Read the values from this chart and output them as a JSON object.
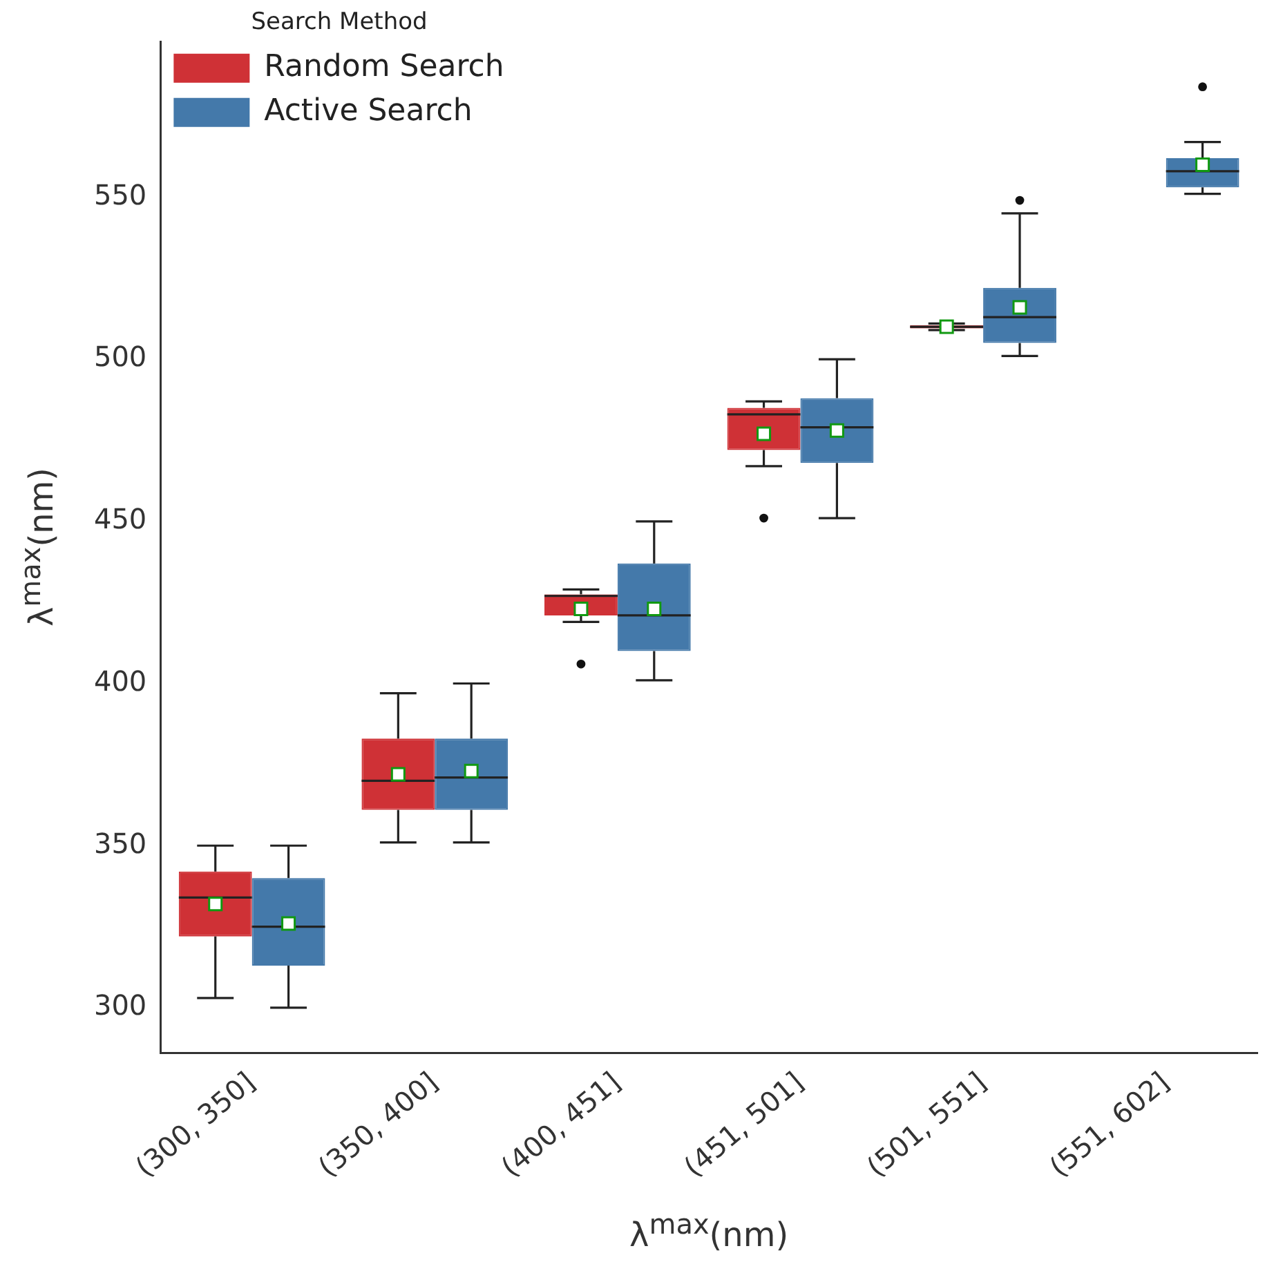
{
  "chart_data": {
    "type": "box",
    "xlabel": "λ$^{max}$(nm)",
    "ylabel": "λ$^{max}$(nm)",
    "legend_title": "Search Method",
    "legend": "top left",
    "grid": false,
    "categories": [
      "(300, 350]",
      "(350, 400]",
      "(400, 451]",
      "(451, 501]",
      "(501, 551]",
      "(551, 602]"
    ],
    "ylim": [
      286,
      598
    ],
    "yticks": [
      300,
      350,
      400,
      450,
      500,
      550
    ],
    "series": [
      {
        "name": "Random Search",
        "color": "#cf3136",
        "boxes": [
          {
            "low": 303,
            "q1": 322,
            "median": 334,
            "q3": 342,
            "high": 350,
            "mean": 332
          },
          {
            "low": 351,
            "q1": 361,
            "median": 370,
            "q3": 383,
            "high": 397,
            "mean": 372
          },
          {
            "low": 419,
            "q1": 421,
            "median": 427,
            "q3": 427.5,
            "high": 429,
            "mean": 423,
            "outliers": [
              406
            ]
          },
          {
            "low": 467,
            "q1": 472,
            "median": 483,
            "q3": 485,
            "high": 487,
            "mean": 477,
            "outliers": [
              451
            ]
          },
          {
            "low": 509,
            "q1": 509.5,
            "median": 510,
            "q3": 510.5,
            "high": 511,
            "mean": 510
          },
          null
        ]
      },
      {
        "name": "Active Search",
        "color": "#4479aa",
        "boxes": [
          {
            "low": 300,
            "q1": 313,
            "median": 325,
            "q3": 340,
            "high": 350,
            "mean": 326
          },
          {
            "low": 351,
            "q1": 361,
            "median": 371,
            "q3": 383,
            "high": 400,
            "mean": 373
          },
          {
            "low": 401,
            "q1": 410,
            "median": 421,
            "q3": 437,
            "high": 450,
            "mean": 423
          },
          {
            "low": 451,
            "q1": 468,
            "median": 479,
            "q3": 488,
            "high": 500,
            "mean": 478
          },
          {
            "low": 501,
            "q1": 505,
            "median": 513,
            "q3": 522,
            "high": 545,
            "mean": 516,
            "outliers": [
              549
            ]
          },
          {
            "low": 551,
            "q1": 553,
            "median": 558,
            "q3": 562,
            "high": 567,
            "mean": 560,
            "outliers": [
              584
            ]
          }
        ]
      }
    ]
  }
}
